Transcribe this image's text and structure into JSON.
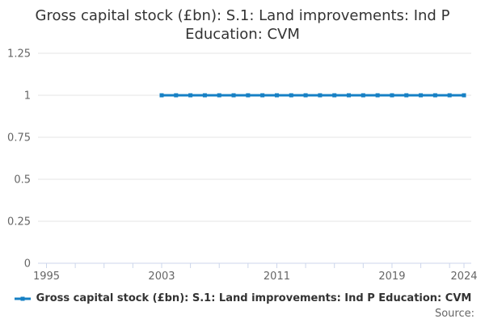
{
  "header": {
    "title_lines": [
      "Gross capital stock (£bn): S.1: Land improvements: Ind P",
      "Education: CVM"
    ]
  },
  "legend": {
    "label": "Gross capital stock (£bn): S.1: Land improvements: Ind P Education: CVM"
  },
  "footer": {
    "source_label": "Source:"
  },
  "colors": {
    "series_blue": "#1680c4",
    "axis_line": "#ccd6eb",
    "gridline": "#e6e6e6",
    "axis_text": "#666666",
    "title_text": "#333333",
    "background": "#ffffff"
  },
  "chart_data": {
    "type": "line",
    "title": "Gross capital stock (£bn): S.1: Land improvements: Ind P Education: CVM",
    "xlabel": "",
    "ylabel": "",
    "xlim": [
      1994.4,
      2024.5
    ],
    "ylim": [
      0,
      1.25
    ],
    "grid": "horizontal-only",
    "legend_position": "bottom",
    "yticks": [
      0,
      0.25,
      0.5,
      0.75,
      1,
      1.25
    ],
    "ytick_labels": [
      "0",
      "0.25",
      "0.5",
      "0.75",
      "1",
      "1.25"
    ],
    "xticks_minor": [
      1995,
      1997,
      1999,
      2001,
      2003,
      2005,
      2007,
      2009,
      2011,
      2013,
      2015,
      2017,
      2019,
      2021,
      2023,
      2024
    ],
    "xtick_labeled": [
      1995,
      2003,
      2011,
      2019,
      2024
    ],
    "xtick_labels": [
      "1995",
      "2003",
      "2011",
      "2019",
      "2024"
    ],
    "series": [
      {
        "name": "Gross capital stock (£bn): S.1: Land improvements: Ind P Education: CVM",
        "color": "#1680c4",
        "marker": "square",
        "x": [
          2003,
          2004,
          2005,
          2006,
          2007,
          2008,
          2009,
          2010,
          2011,
          2012,
          2013,
          2014,
          2015,
          2016,
          2017,
          2018,
          2019,
          2020,
          2021,
          2022,
          2023,
          2024
        ],
        "values": [
          1,
          1,
          1,
          1,
          1,
          1,
          1,
          1,
          1,
          1,
          1,
          1,
          1,
          1,
          1,
          1,
          1,
          1,
          1,
          1,
          1,
          1
        ]
      }
    ]
  }
}
